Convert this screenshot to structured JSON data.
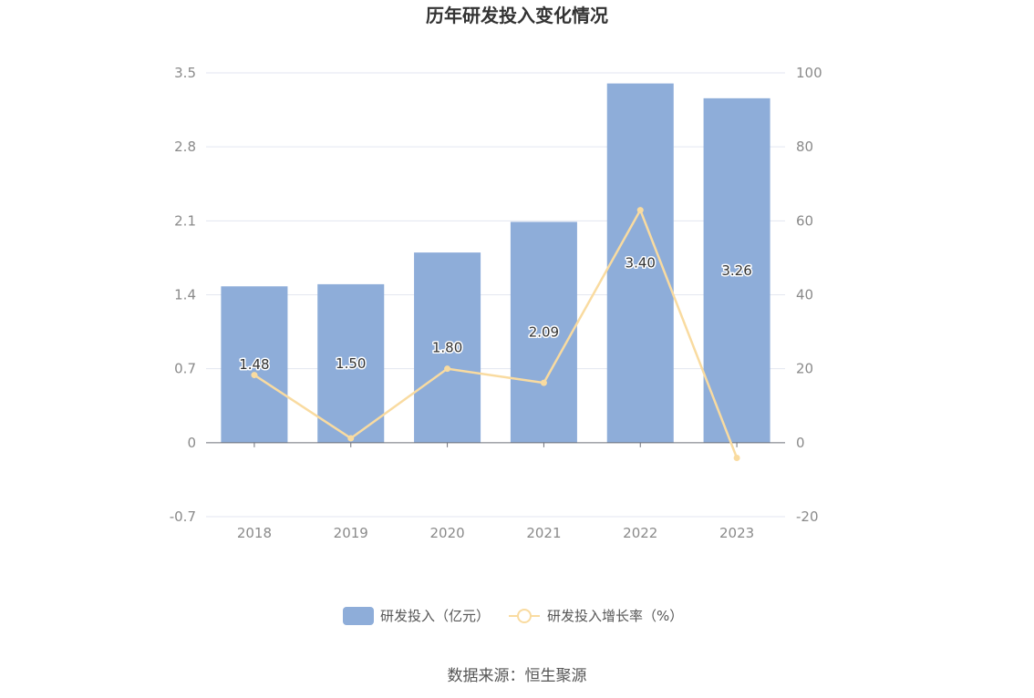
{
  "chart_data": {
    "type": "bar",
    "title": "历年研发投入变化情况",
    "categories": [
      "2018",
      "2019",
      "2020",
      "2021",
      "2022",
      "2023"
    ],
    "series": [
      {
        "name": "研发投入（亿元）",
        "type": "bar",
        "axis": "left",
        "color": "#8eadd9",
        "values": [
          1.48,
          1.5,
          1.8,
          2.09,
          3.4,
          3.26
        ],
        "labels": [
          "1.48",
          "1.50",
          "1.80",
          "2.09",
          "3.40",
          "3.26"
        ]
      },
      {
        "name": "研发投入增长率（%）",
        "type": "line",
        "axis": "right",
        "color": "#f9dba0",
        "values": [
          18.3,
          1.2,
          20.0,
          16.2,
          62.9,
          -4.1
        ]
      }
    ],
    "y_left": {
      "ylim": [
        -0.7,
        3.5
      ],
      "ticks": [
        "-0.7",
        "0",
        "0.7",
        "1.4",
        "2.1",
        "2.8",
        "3.5"
      ]
    },
    "y_right": {
      "ylim": [
        -20,
        100
      ],
      "ticks": [
        "-20",
        "0",
        "20",
        "40",
        "60",
        "80",
        "100"
      ]
    },
    "grid": true,
    "legend_position": "bottom"
  },
  "source": "数据来源：恒生聚源"
}
